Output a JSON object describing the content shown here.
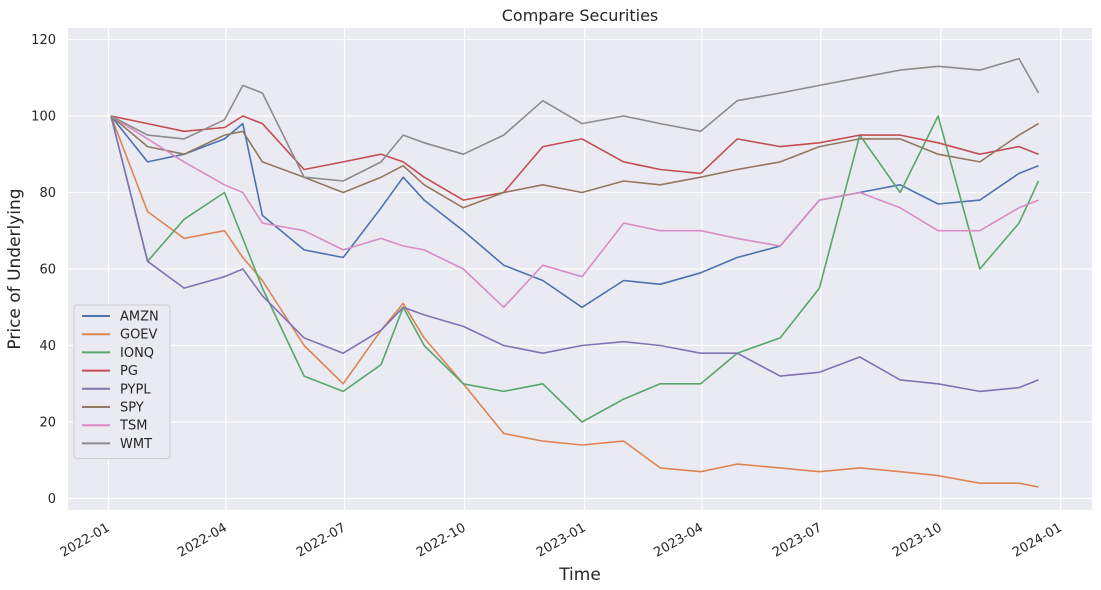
{
  "chart_data": {
    "type": "line",
    "title": "Compare Securities",
    "xlabel": "Time",
    "ylabel": "Price of Underlying",
    "x_range": [
      "2021-12-01",
      "2024-01-25"
    ],
    "ylim": [
      -3,
      123
    ],
    "grid": true,
    "legend_position": "lower-left",
    "x_ticks": [
      "2022-01",
      "2022-04",
      "2022-07",
      "2022-10",
      "2023-01",
      "2023-04",
      "2023-07",
      "2023-10",
      "2024-01"
    ],
    "y_ticks": [
      0,
      20,
      40,
      60,
      80,
      100,
      120
    ],
    "x": [
      "2022-01-03",
      "2022-01-31",
      "2022-02-28",
      "2022-03-31",
      "2022-04-14",
      "2022-04-29",
      "2022-05-31",
      "2022-06-30",
      "2022-07-29",
      "2022-08-15",
      "2022-08-31",
      "2022-09-30",
      "2022-10-31",
      "2022-11-30",
      "2022-12-30",
      "2023-01-31",
      "2023-02-28",
      "2023-03-31",
      "2023-04-28",
      "2023-05-31",
      "2023-06-30",
      "2023-07-31",
      "2023-08-31",
      "2023-09-29",
      "2023-10-31",
      "2023-11-30",
      "2023-12-15"
    ],
    "series": [
      {
        "name": "AMZN",
        "color": "#4c72b0",
        "values": [
          100,
          88,
          90,
          94,
          98,
          74,
          65,
          63,
          76,
          84,
          78,
          70,
          61,
          57,
          50,
          57,
          56,
          59,
          63,
          66,
          78,
          80,
          82,
          77,
          78,
          85,
          87
        ]
      },
      {
        "name": "GOEV",
        "color": "#dd8452",
        "values": [
          100,
          75,
          68,
          70,
          63,
          57,
          40,
          30,
          44,
          51,
          42,
          30,
          17,
          15,
          14,
          15,
          8,
          7,
          9,
          8,
          7,
          8,
          7,
          6,
          4,
          4,
          3
        ]
      },
      {
        "name": "IONQ",
        "color": "#55a868",
        "values": [
          100,
          62,
          73,
          80,
          68,
          55,
          32,
          28,
          35,
          50,
          40,
          30,
          28,
          30,
          20,
          26,
          30,
          30,
          38,
          42,
          55,
          95,
          80,
          100,
          60,
          72,
          83
        ]
      },
      {
        "name": "PG",
        "color": "#c44e52",
        "values": [
          100,
          98,
          96,
          97,
          100,
          98,
          86,
          88,
          90,
          88,
          84,
          78,
          80,
          92,
          94,
          88,
          86,
          85,
          94,
          92,
          93,
          95,
          95,
          93,
          90,
          92,
          90
        ]
      },
      {
        "name": "PYPL",
        "color": "#8172b3",
        "values": [
          100,
          62,
          55,
          58,
          60,
          53,
          42,
          38,
          44,
          50,
          48,
          45,
          40,
          38,
          40,
          41,
          40,
          38,
          38,
          32,
          33,
          37,
          31,
          30,
          28,
          29,
          31
        ]
      },
      {
        "name": "SPY",
        "color": "#937860",
        "values": [
          100,
          92,
          90,
          95,
          96,
          88,
          84,
          80,
          84,
          87,
          82,
          76,
          80,
          82,
          80,
          83,
          82,
          84,
          86,
          88,
          92,
          94,
          94,
          90,
          88,
          95,
          98
        ]
      },
      {
        "name": "TSM",
        "color": "#da8bc3",
        "values": [
          100,
          94,
          88,
          82,
          80,
          72,
          70,
          65,
          68,
          66,
          65,
          60,
          50,
          61,
          58,
          72,
          70,
          70,
          68,
          66,
          78,
          80,
          76,
          70,
          70,
          76,
          78
        ]
      },
      {
        "name": "WMT",
        "color": "#8c8c8c",
        "values": [
          100,
          95,
          94,
          99,
          108,
          106,
          84,
          83,
          88,
          95,
          93,
          90,
          95,
          104,
          98,
          100,
          98,
          96,
          104,
          106,
          108,
          110,
          112,
          113,
          112,
          115,
          106
        ]
      }
    ]
  }
}
